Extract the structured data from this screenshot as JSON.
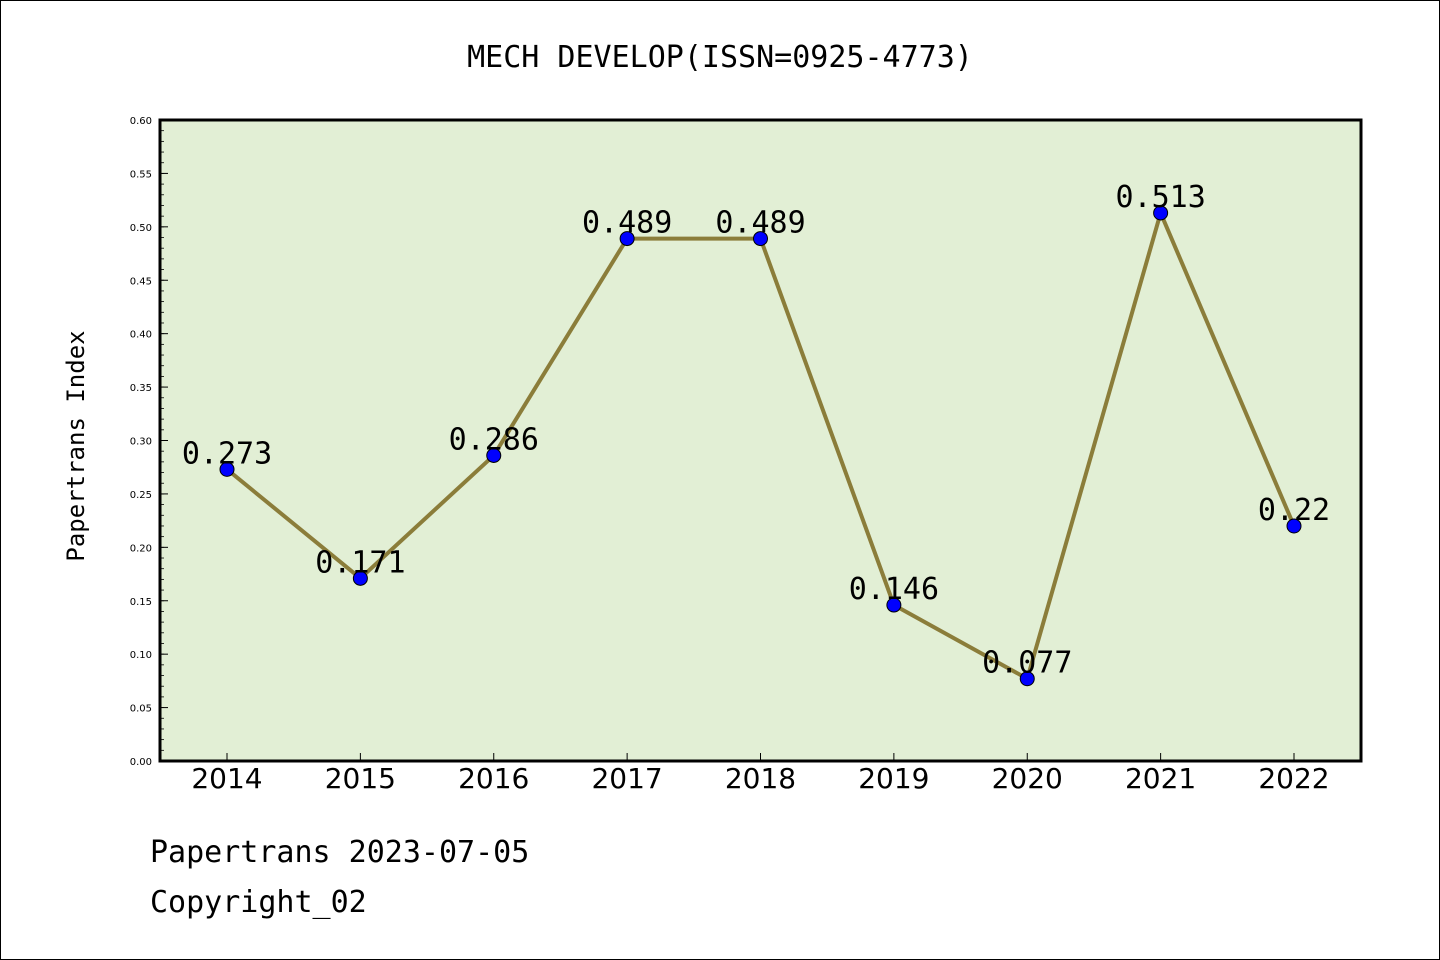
{
  "chart_data": {
    "type": "line",
    "title": "MECH DEVELOP(ISSN=0925-4773)",
    "ylabel": "Papertrans Index",
    "xlabel": "",
    "categories": [
      "2014",
      "2015",
      "2016",
      "2017",
      "2018",
      "2019",
      "2020",
      "2021",
      "2022"
    ],
    "series": [
      {
        "values": [
          0.273,
          0.171,
          0.286,
          0.489,
          0.489,
          0.146,
          0.077,
          0.513,
          0.22
        ],
        "data_labels": [
          "0.273",
          "0.171",
          "0.286",
          "0.489",
          "0.489",
          "0.146",
          "0.077",
          "0.513",
          "0.22"
        ]
      }
    ],
    "ylim": [
      0,
      0.6
    ],
    "yticks": [
      "0.00",
      "0.05",
      "0.10",
      "0.15",
      "0.20",
      "0.25",
      "0.30",
      "0.35",
      "0.40",
      "0.45",
      "0.50",
      "0.55",
      "0.60"
    ],
    "grid": false,
    "colors": {
      "plot_background": "#e2efd5",
      "line": "#8b7d3a",
      "marker": "#0000ff"
    }
  },
  "footer": {
    "line1": "Papertrans 2023-07-05",
    "line2": "Copyright_02"
  }
}
